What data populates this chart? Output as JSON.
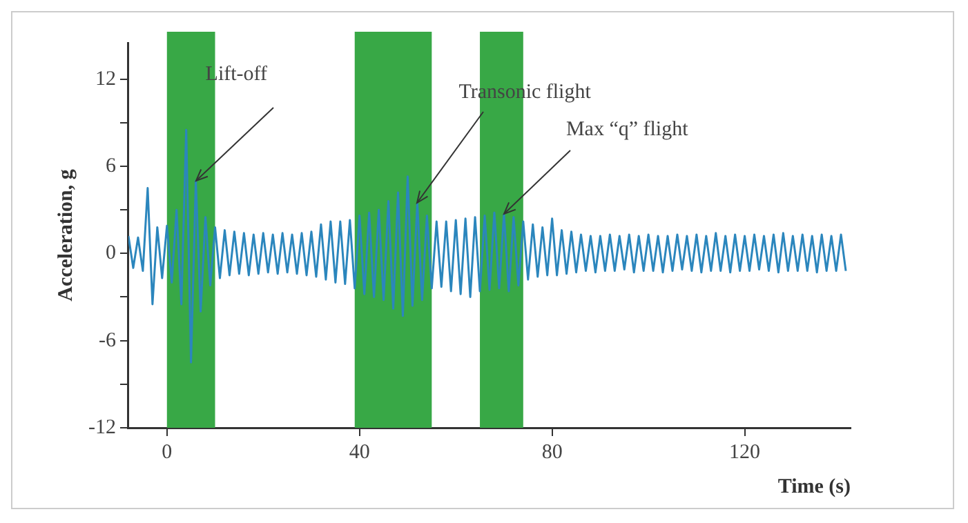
{
  "chart_data": {
    "type": "line",
    "xlabel": "Time (s)",
    "ylabel": "Acceleration, g",
    "x": [
      -8,
      -7,
      -6,
      -5,
      -4,
      -3,
      -2,
      -1,
      0,
      1,
      2,
      3,
      4,
      5,
      6,
      7,
      8,
      9,
      10,
      11,
      12,
      13,
      14,
      15,
      16,
      17,
      18,
      19,
      20,
      21,
      22,
      23,
      24,
      25,
      26,
      27,
      28,
      29,
      30,
      31,
      32,
      33,
      34,
      35,
      36,
      37,
      38,
      39,
      40,
      41,
      42,
      43,
      44,
      45,
      46,
      47,
      48,
      49,
      50,
      51,
      52,
      53,
      54,
      55,
      56,
      57,
      58,
      59,
      60,
      61,
      62,
      63,
      64,
      65,
      66,
      67,
      68,
      69,
      70,
      71,
      72,
      73,
      74,
      75,
      76,
      77,
      78,
      79,
      80,
      81,
      82,
      83,
      84,
      85,
      86,
      87,
      88,
      89,
      90,
      91,
      92,
      93,
      94,
      95,
      96,
      97,
      98,
      99,
      100,
      101,
      102,
      103,
      104,
      105,
      106,
      107,
      108,
      109,
      110,
      111,
      112,
      113,
      114,
      115,
      116,
      117,
      118,
      119,
      120,
      121,
      122,
      123,
      124,
      125,
      126,
      127,
      128,
      129,
      130,
      131,
      132,
      133,
      134,
      135,
      136,
      137,
      138,
      139,
      140,
      141
    ],
    "series": [
      {
        "color": "#2b86bd",
        "values": [
          1.2,
          -1.0,
          1.1,
          -1.2,
          4.5,
          -3.5,
          1.8,
          -1.7,
          1.9,
          -2.0,
          3.0,
          -3.5,
          8.5,
          -7.5,
          5.0,
          -4.0,
          2.5,
          -2.2,
          1.8,
          -1.7,
          1.6,
          -1.5,
          1.5,
          -1.4,
          1.4,
          -1.5,
          1.3,
          -1.4,
          1.4,
          -1.3,
          1.3,
          -1.4,
          1.4,
          -1.3,
          1.3,
          -1.4,
          1.4,
          -1.5,
          1.5,
          -1.6,
          2.0,
          -1.8,
          2.2,
          -2.0,
          2.2,
          -2.1,
          2.3,
          -2.4,
          2.6,
          -2.8,
          2.8,
          -3.0,
          3.0,
          -3.2,
          3.6,
          -3.8,
          4.2,
          -4.3,
          5.3,
          -3.6,
          3.5,
          -3.2,
          2.6,
          -2.4,
          2.2,
          -2.3,
          2.2,
          -2.6,
          2.3,
          -2.8,
          2.4,
          -3.0,
          2.5,
          -2.6,
          2.6,
          -2.5,
          2.8,
          -2.4,
          2.7,
          -2.6,
          2.5,
          -2.2,
          2.2,
          -1.8,
          2.0,
          -1.6,
          1.8,
          -1.5,
          2.4,
          -1.5,
          1.6,
          -1.4,
          1.5,
          -1.3,
          1.3,
          -1.2,
          1.2,
          -1.3,
          1.2,
          -1.2,
          1.3,
          -1.2,
          1.2,
          -1.1,
          1.3,
          -1.3,
          1.2,
          -1.2,
          1.3,
          -1.2,
          1.2,
          -1.3,
          1.2,
          -1.2,
          1.3,
          -1.1,
          1.2,
          -1.2,
          1.3,
          -1.3,
          1.2,
          -1.2,
          1.4,
          -1.2,
          1.2,
          -1.3,
          1.3,
          -1.2,
          1.2,
          -1.2,
          1.3,
          -1.1,
          1.2,
          -1.2,
          1.3,
          -1.3,
          1.4,
          -1.2,
          1.2,
          -1.2,
          1.3,
          -1.2,
          1.2,
          -1.3,
          1.3,
          -1.2,
          1.2,
          -1.2,
          1.3,
          -1.2
        ]
      }
    ],
    "xlim": [
      -8,
      142
    ],
    "xticks": [
      0,
      40,
      80,
      120
    ],
    "ylim": [
      -12,
      14.5
    ],
    "yticks": [
      -12,
      {
        "value": -9,
        "label": null
      },
      -6,
      {
        "value": -3,
        "label": null
      },
      0,
      {
        "value": 3,
        "label": null
      },
      6,
      {
        "value": 9,
        "label": null
      },
      12
    ],
    "bands": [
      {
        "axis": "x",
        "from": 0,
        "to": 10,
        "color": "#38a846"
      },
      {
        "axis": "x",
        "from": 39,
        "to": 55,
        "color": "#38a846"
      },
      {
        "axis": "x",
        "from": 65,
        "to": 74,
        "color": "#38a846"
      }
    ],
    "annotations": [
      {
        "text": "Lift-off",
        "x": 6,
        "y": 5
      },
      {
        "text": "Transonic flight",
        "x": 52,
        "y": 3.5
      },
      {
        "text": "Max “q” flight",
        "x": 70,
        "y": 2.7
      }
    ],
    "grid": false,
    "legend": false,
    "marker": "none",
    "line_style": "solid"
  }
}
